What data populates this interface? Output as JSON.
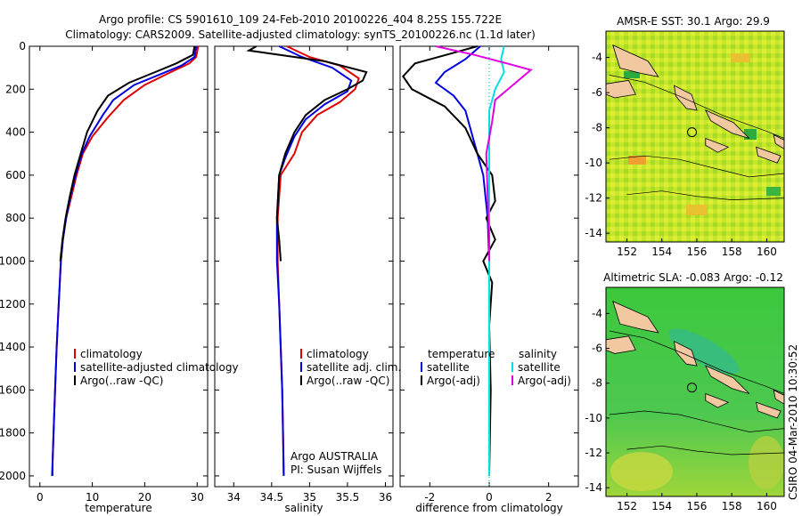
{
  "header": {
    "line1": "Argo profile: CS 5901610_109 24-Feb-2010 20100226_404 8.25S 155.722E",
    "line2": "Climatology: CARS2009. Satellite-adjusted climatology: synTS_20100226.nc (1.1d later)"
  },
  "side_label": "CSIRO 04-Mar-2010 10:30:52",
  "credit": {
    "line1": "Argo AUSTRALIA",
    "line2": "PI: Susan Wijffels"
  },
  "colors": {
    "red": "#e00000",
    "blue": "#0000e0",
    "black": "#000000",
    "cyan": "#00e0e0",
    "magenta": "#e000e0",
    "dotted": "#00c8c8"
  },
  "chart_data": [
    {
      "type": "line",
      "xlabel": "temperature",
      "xlim": [
        -2,
        32
      ],
      "ylim": [
        0,
        2050
      ],
      "xticks": [
        "0",
        "10",
        "20",
        "30"
      ],
      "xtick_values": [
        0,
        10,
        20,
        30
      ],
      "yticks": [
        "0",
        "200",
        "400",
        "600",
        "800",
        "1000",
        "1200",
        "1400",
        "1600",
        "1800",
        "2000"
      ],
      "ytick_values": [
        0,
        200,
        400,
        600,
        800,
        1000,
        1200,
        1400,
        1600,
        1800,
        2000
      ],
      "y_reversed": true,
      "legend": [
        "climatology",
        "satellite-adjusted climatology",
        "Argo(..raw -QC)"
      ],
      "series": [
        {
          "name": "climatology",
          "color": "red",
          "points": [
            [
              30.2,
              0
            ],
            [
              29.8,
              50
            ],
            [
              28.5,
              80
            ],
            [
              25,
              120
            ],
            [
              20,
              180
            ],
            [
              16,
              250
            ],
            [
              13,
              330
            ],
            [
              10,
              420
            ],
            [
              8.2,
              500
            ],
            [
              7,
              600
            ],
            [
              6,
              700
            ],
            [
              5,
              800
            ],
            [
              4.4,
              900
            ],
            [
              4,
              1000
            ],
            [
              3.6,
              1200
            ],
            [
              3.2,
              1400
            ],
            [
              2.9,
              1600
            ],
            [
              2.6,
              1800
            ],
            [
              2.4,
              1950
            ],
            [
              2.3,
              2000
            ]
          ]
        },
        {
          "name": "satellite-adjusted climatology",
          "color": "blue",
          "points": [
            [
              29.8,
              0
            ],
            [
              29.5,
              50
            ],
            [
              27,
              90
            ],
            [
              23,
              130
            ],
            [
              18,
              180
            ],
            [
              14,
              250
            ],
            [
              12,
              320
            ],
            [
              9.5,
              420
            ],
            [
              8,
              500
            ],
            [
              6.8,
              600
            ],
            [
              5.8,
              700
            ],
            [
              5,
              800
            ],
            [
              4.4,
              900
            ],
            [
              4,
              1000
            ],
            [
              3.6,
              1200
            ],
            [
              3.2,
              1400
            ],
            [
              2.9,
              1600
            ],
            [
              2.6,
              1800
            ],
            [
              2.4,
              1950
            ],
            [
              2.4,
              2000
            ]
          ]
        },
        {
          "name": "Argo(..raw -QC)",
          "color": "black",
          "points": [
            [
              29.5,
              0
            ],
            [
              29.2,
              40
            ],
            [
              26,
              80
            ],
            [
              22,
              120
            ],
            [
              17,
              170
            ],
            [
              13,
              230
            ],
            [
              11,
              300
            ],
            [
              9,
              400
            ],
            [
              7.8,
              500
            ],
            [
              6.6,
              600
            ],
            [
              5.7,
              700
            ],
            [
              4.9,
              800
            ],
            [
              4.3,
              900
            ],
            [
              3.9,
              1000
            ]
          ]
        }
      ]
    },
    {
      "type": "line",
      "xlabel": "salinity",
      "xlim": [
        33.75,
        36.1
      ],
      "ylim": [
        0,
        2050
      ],
      "xticks": [
        "34",
        "34.5",
        "35",
        "35.5",
        "36"
      ],
      "xtick_values": [
        34,
        34.5,
        35,
        35.5,
        36
      ],
      "y_reversed": true,
      "legend": [
        "climatology",
        "satellite adj. clim.",
        "Argo(..raw -QC)"
      ],
      "series": [
        {
          "name": "climatology",
          "color": "red",
          "points": [
            [
              34.7,
              0
            ],
            [
              35,
              50
            ],
            [
              35.4,
              90
            ],
            [
              35.65,
              150
            ],
            [
              35.6,
              200
            ],
            [
              35.4,
              260
            ],
            [
              35.1,
              320
            ],
            [
              34.9,
              400
            ],
            [
              34.8,
              500
            ],
            [
              34.62,
              600
            ],
            [
              34.58,
              800
            ],
            [
              34.58,
              1000
            ],
            [
              34.6,
              1200
            ],
            [
              34.62,
              1400
            ],
            [
              34.64,
              1600
            ],
            [
              34.65,
              1800
            ],
            [
              34.66,
              2000
            ]
          ]
        },
        {
          "name": "satellite adj. clim.",
          "color": "blue",
          "points": [
            [
              34.6,
              0
            ],
            [
              34.9,
              50
            ],
            [
              35.3,
              100
            ],
            [
              35.55,
              160
            ],
            [
              35.5,
              210
            ],
            [
              35.2,
              270
            ],
            [
              34.95,
              340
            ],
            [
              34.8,
              420
            ],
            [
              34.68,
              520
            ],
            [
              34.6,
              600
            ],
            [
              34.57,
              800
            ],
            [
              34.57,
              1000
            ],
            [
              34.6,
              1200
            ],
            [
              34.62,
              1400
            ],
            [
              34.64,
              1600
            ],
            [
              34.65,
              1800
            ],
            [
              34.66,
              2000
            ]
          ]
        },
        {
          "name": "Argo(..raw -QC)",
          "color": "black",
          "points": [
            [
              34.3,
              0
            ],
            [
              34.2,
              20
            ],
            [
              35.2,
              70
            ],
            [
              35.75,
              120
            ],
            [
              35.7,
              160
            ],
            [
              35.5,
              200
            ],
            [
              35.2,
              250
            ],
            [
              34.95,
              320
            ],
            [
              34.8,
              400
            ],
            [
              34.68,
              500
            ],
            [
              34.6,
              600
            ],
            [
              34.57,
              800
            ],
            [
              34.6,
              900
            ],
            [
              34.62,
              1000
            ]
          ]
        }
      ]
    },
    {
      "type": "line",
      "xlabel": "difference from climatology",
      "xlim": [
        -3,
        3
      ],
      "ylim": [
        0,
        2050
      ],
      "xticks": [
        "-2",
        "0",
        "2"
      ],
      "xtick_values": [
        -2,
        0,
        2
      ],
      "y_reversed": true,
      "legend": [
        "temperature",
        "satellite",
        "Argo(-adj)",
        "salinity",
        "satellite",
        "Argo(-adj)"
      ],
      "series": [
        {
          "name": "satellite",
          "color": "blue",
          "points": [
            [
              -0.3,
              0
            ],
            [
              -0.8,
              60
            ],
            [
              -1.5,
              120
            ],
            [
              -1.8,
              170
            ],
            [
              -1.2,
              230
            ],
            [
              -0.8,
              300
            ],
            [
              -0.6,
              400
            ],
            [
              -0.4,
              500
            ],
            [
              -0.2,
              600
            ],
            [
              -0.05,
              800
            ],
            [
              0,
              1000
            ],
            [
              0,
              1400
            ],
            [
              0,
              2000
            ]
          ]
        },
        {
          "name": "Argo(-adj)",
          "color": "black",
          "points": [
            [
              -0.4,
              0
            ],
            [
              -2.5,
              80
            ],
            [
              -2.9,
              140
            ],
            [
              -2.6,
              200
            ],
            [
              -1.5,
              280
            ],
            [
              -0.8,
              380
            ],
            [
              -0.4,
              500
            ],
            [
              0.1,
              600
            ],
            [
              0.2,
              720
            ],
            [
              -0.1,
              800
            ],
            [
              0.2,
              900
            ],
            [
              -0.2,
              1000
            ],
            [
              0.1,
              1100
            ],
            [
              0,
              1300
            ],
            [
              0.05,
              1600
            ],
            [
              0,
              2000
            ]
          ]
        },
        {
          "name": "satellite",
          "color": "cyan",
          "points": [
            [
              0.5,
              0
            ],
            [
              0.4,
              60
            ],
            [
              0.5,
              120
            ],
            [
              0.2,
              200
            ],
            [
              0,
              300
            ],
            [
              0,
              400
            ],
            [
              0,
              600
            ],
            [
              0,
              1000
            ],
            [
              0,
              2000
            ]
          ]
        },
        {
          "name": "Argo(-adj)",
          "color": "magenta",
          "points": [
            [
              -1.8,
              0
            ],
            [
              -0.5,
              40
            ],
            [
              0.6,
              80
            ],
            [
              1.4,
              110
            ],
            [
              0.8,
              180
            ],
            [
              0.2,
              250
            ],
            [
              0.1,
              350
            ],
            [
              -0.1,
              500
            ],
            [
              -0.05,
              700
            ],
            [
              0,
              900
            ],
            [
              0,
              1000
            ]
          ]
        }
      ]
    }
  ],
  "maps": [
    {
      "title": "AMSR-E SST: 30.1 Argo: 29.9",
      "xticks": [
        "152",
        "154",
        "156",
        "158",
        "160"
      ],
      "xtick_values": [
        152,
        154,
        156,
        158,
        160
      ],
      "yticks": [
        "-4",
        "-6",
        "-8",
        "-10",
        "-12",
        "-14"
      ],
      "ytick_values": [
        -4,
        -6,
        -8,
        -10,
        -12,
        -14
      ],
      "xlim": [
        150.8,
        161
      ],
      "ylim": [
        -14.5,
        -2.5
      ],
      "marker": [
        155.722,
        -8.25
      ]
    },
    {
      "title": "Altimetric SLA: -0.083 Argo: -0.12",
      "xticks": [
        "152",
        "154",
        "156",
        "158",
        "160"
      ],
      "xtick_values": [
        152,
        154,
        156,
        158,
        160
      ],
      "yticks": [
        "-4",
        "-6",
        "-8",
        "-10",
        "-12",
        "-14"
      ],
      "ytick_values": [
        -4,
        -6,
        -8,
        -10,
        -12,
        -14
      ],
      "xlim": [
        150.8,
        161
      ],
      "ylim": [
        -14.5,
        -2.5
      ],
      "marker": [
        155.722,
        -8.25
      ]
    }
  ]
}
